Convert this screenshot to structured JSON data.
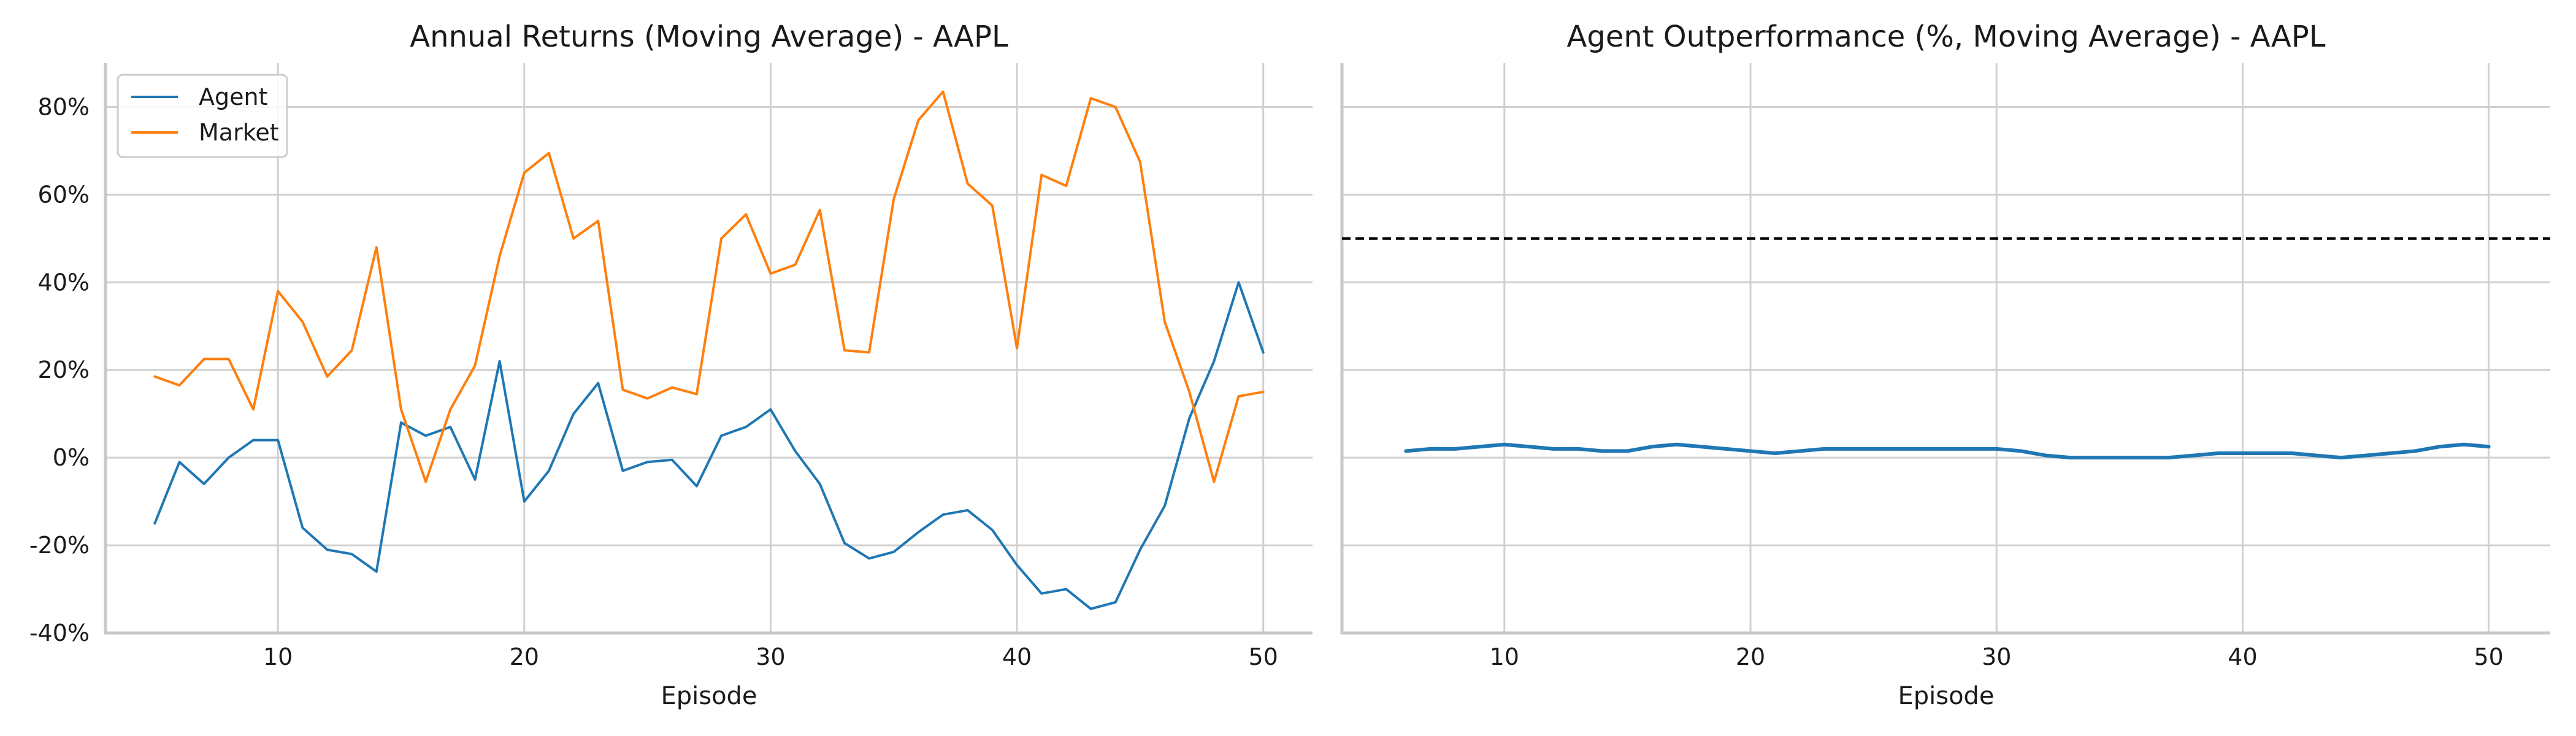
{
  "chart_data": [
    {
      "type": "line",
      "title": "Annual Returns (Moving Average) - AAPL",
      "xlabel": "Episode",
      "ylabel": "",
      "xlim": [
        3,
        52
      ],
      "ylim": [
        -40,
        90
      ],
      "xticks": [
        10,
        20,
        30,
        40,
        50
      ],
      "yticks": [
        -40,
        -20,
        0,
        20,
        40,
        60,
        80
      ],
      "ytick_format": "percent",
      "grid": true,
      "legend": "top-left",
      "x": [
        5,
        6,
        7,
        8,
        9,
        10,
        11,
        12,
        13,
        14,
        15,
        16,
        17,
        18,
        19,
        20,
        21,
        22,
        23,
        24,
        25,
        26,
        27,
        28,
        29,
        30,
        31,
        32,
        33,
        34,
        35,
        36,
        37,
        38,
        39,
        40,
        41,
        42,
        43,
        44,
        45,
        46,
        47,
        48,
        49,
        50
      ],
      "series": [
        {
          "name": "Agent",
          "color": "#1f77b4",
          "values": [
            -15,
            -1,
            -6,
            0,
            4,
            4,
            -16,
            -21,
            -22,
            -26,
            8,
            5,
            7,
            -5,
            22,
            -10,
            -3,
            10,
            17,
            -3,
            -1,
            -0.5,
            -6.5,
            5,
            7,
            11,
            1.5,
            -6,
            -19.5,
            -23,
            -21.5,
            -17,
            -13,
            -12,
            -16.5,
            -24.5,
            -31,
            -30,
            -34.5,
            -33,
            -21,
            -11,
            9,
            22,
            40,
            24
          ]
        },
        {
          "name": "Market",
          "color": "#ff7f0e",
          "values": [
            18.5,
            16.5,
            22.5,
            22.5,
            11,
            38,
            31,
            18.5,
            24.5,
            48,
            11,
            -5.5,
            11,
            21,
            46,
            65,
            69.5,
            50,
            54,
            15.5,
            13.5,
            16,
            14.5,
            50,
            55.5,
            42,
            44,
            56.5,
            24.5,
            24,
            59,
            77,
            83.5,
            62.5,
            57.5,
            25,
            64.5,
            62,
            82,
            80,
            67.5,
            31,
            15,
            -5.5,
            14,
            15
          ]
        }
      ]
    },
    {
      "type": "line",
      "title": "Agent Outperformance (%, Moving Average) - AAPL",
      "xlabel": "Episode",
      "ylabel": "",
      "xlim": [
        3.4,
        52.5
      ],
      "ylim": [
        -40,
        90
      ],
      "xticks": [
        10,
        20,
        30,
        40,
        50
      ],
      "grid": true,
      "reference_line": {
        "y": 50,
        "style": "dashed",
        "color": "#000000"
      },
      "x": [
        6,
        7,
        8,
        9,
        10,
        11,
        12,
        13,
        14,
        15,
        16,
        17,
        18,
        19,
        20,
        21,
        22,
        23,
        24,
        25,
        26,
        27,
        28,
        29,
        30,
        31,
        32,
        33,
        34,
        35,
        36,
        37,
        38,
        39,
        40,
        41,
        42,
        43,
        44,
        45,
        46,
        47,
        48,
        49,
        50
      ],
      "series": [
        {
          "color": "#1f77b4",
          "values": [
            1.5,
            2,
            2,
            2.5,
            3,
            2.5,
            2,
            2,
            1.5,
            1.5,
            2.5,
            3,
            2.5,
            2,
            1.5,
            1,
            1.5,
            2,
            2,
            2,
            2,
            2,
            2,
            2,
            2,
            1.5,
            0.5,
            0,
            0,
            0,
            0,
            0,
            0.5,
            1,
            1,
            1,
            1,
            0.5,
            0,
            0.5,
            1,
            1.5,
            2.5,
            3,
            2.5
          ]
        }
      ]
    }
  ]
}
